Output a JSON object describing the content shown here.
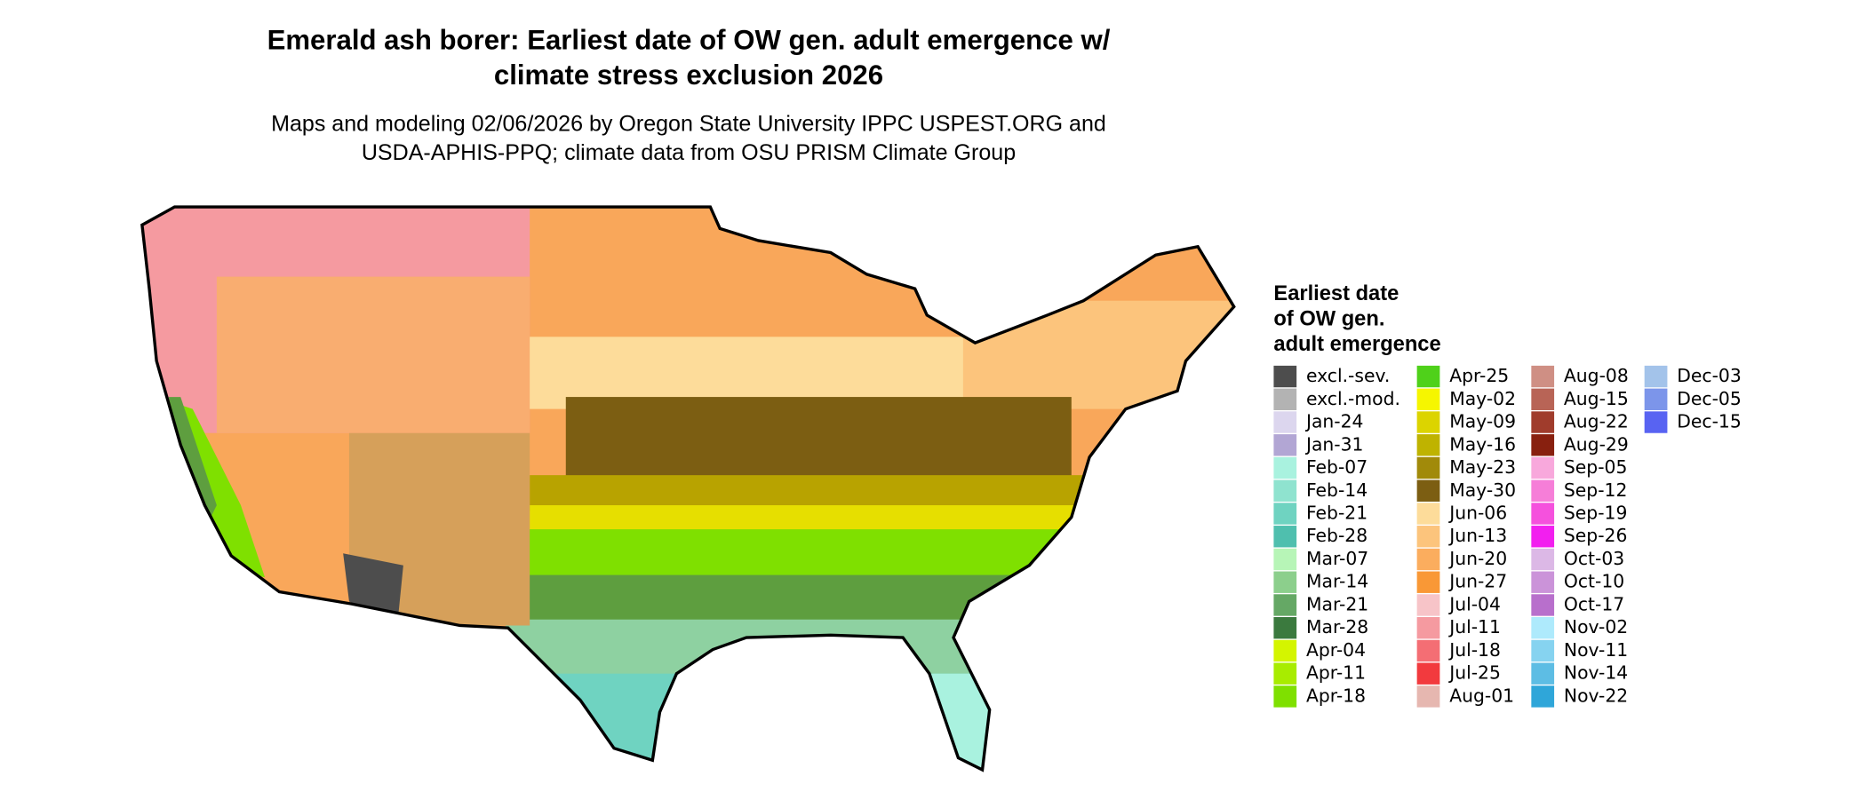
{
  "header": {
    "title_lines": [
      "Emerald ash borer: Earliest date of OW gen. adult emergence w/",
      "climate stress exclusion 2026"
    ],
    "subtitle_lines": [
      "Maps and modeling 02/06/2026 by Oregon State University IPPC USPEST.ORG and",
      "USDA-APHIS-PPQ; climate data from OSU PRISM Climate Group"
    ]
  },
  "legend": {
    "title_lines": [
      "Earliest date",
      "of OW gen.",
      "adult emergence"
    ],
    "items": [
      {
        "label": "excl.-sev.",
        "color": "#4d4d4d"
      },
      {
        "label": "excl.-mod.",
        "color": "#b3b3b3"
      },
      {
        "label": "Jan-24",
        "color": "#dcd6ee"
      },
      {
        "label": "Jan-31",
        "color": "#b2a6d4"
      },
      {
        "label": "Feb-07",
        "color": "#a9f2df"
      },
      {
        "label": "Feb-14",
        "color": "#8fe3cf"
      },
      {
        "label": "Feb-21",
        "color": "#6fd3c1"
      },
      {
        "label": "Feb-28",
        "color": "#4fbfae"
      },
      {
        "label": "Mar-07",
        "color": "#b7f5b7"
      },
      {
        "label": "Mar-14",
        "color": "#8ccf8c"
      },
      {
        "label": "Mar-21",
        "color": "#65a865"
      },
      {
        "label": "Mar-28",
        "color": "#3b7a3e"
      },
      {
        "label": "Apr-04",
        "color": "#d4f500"
      },
      {
        "label": "Apr-11",
        "color": "#a8ec00"
      },
      {
        "label": "Apr-18",
        "color": "#7fe000"
      },
      {
        "label": "Apr-25",
        "color": "#4fd11a"
      },
      {
        "label": "May-02",
        "color": "#f6f600"
      },
      {
        "label": "May-09",
        "color": "#dcd400"
      },
      {
        "label": "May-16",
        "color": "#bfb300"
      },
      {
        "label": "May-23",
        "color": "#a18a0a"
      },
      {
        "label": "May-30",
        "color": "#7c5e12"
      },
      {
        "label": "Jun-06",
        "color": "#fddc9a"
      },
      {
        "label": "Jun-13",
        "color": "#fcc47c"
      },
      {
        "label": "Jun-20",
        "color": "#fbad5e"
      },
      {
        "label": "Jun-27",
        "color": "#f99836"
      },
      {
        "label": "Jul-04",
        "color": "#f7c4c8"
      },
      {
        "label": "Jul-11",
        "color": "#f59aa0"
      },
      {
        "label": "Jul-18",
        "color": "#f46e74"
      },
      {
        "label": "Jul-25",
        "color": "#f23a3e"
      },
      {
        "label": "Aug-01",
        "color": "#e6b7b0"
      },
      {
        "label": "Aug-08",
        "color": "#cf8f84"
      },
      {
        "label": "Aug-15",
        "color": "#b86456"
      },
      {
        "label": "Aug-22",
        "color": "#a03c2c"
      },
      {
        "label": "Aug-29",
        "color": "#88200f"
      },
      {
        "label": "Sep-05",
        "color": "#f8a8dc"
      },
      {
        "label": "Sep-12",
        "color": "#f67ed8"
      },
      {
        "label": "Sep-19",
        "color": "#f551dd"
      },
      {
        "label": "Sep-26",
        "color": "#f21fef"
      },
      {
        "label": "Oct-03",
        "color": "#dcb8e6"
      },
      {
        "label": "Oct-10",
        "color": "#cb93d9"
      },
      {
        "label": "Oct-17",
        "color": "#b86fcc"
      },
      {
        "label": "Nov-02",
        "color": "#aeeafc"
      },
      {
        "label": "Nov-11",
        "color": "#86d3f0"
      },
      {
        "label": "Nov-14",
        "color": "#5dbde4"
      },
      {
        "label": "Nov-22",
        "color": "#2fa6d9"
      },
      {
        "label": "Dec-03",
        "color": "#a3c3ea"
      },
      {
        "label": "Dec-05",
        "color": "#7c95ea"
      },
      {
        "label": "Dec-15",
        "color": "#5863f2"
      }
    ]
  }
}
